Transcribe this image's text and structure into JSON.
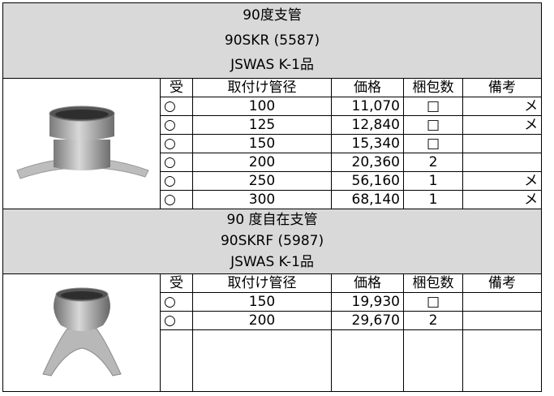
{
  "sections": [
    {
      "title": [
        "90度支管",
        "90SKR (5587)",
        "JSWAS K-1品"
      ],
      "headers": [
        "受",
        "取付け管径",
        "価格",
        "梱包数",
        "備考"
      ],
      "rows": [
        {
          "mark": "○",
          "size": "100",
          "price": "11,070",
          "pack": "□",
          "note": "メ"
        },
        {
          "mark": "○",
          "size": "125",
          "price": "12,840",
          "pack": "□",
          "note": "メ"
        },
        {
          "mark": "○",
          "size": "150",
          "price": "15,340",
          "pack": "□"
        },
        {
          "mark": "○",
          "size": "200",
          "price": "20,360",
          "pack": "2"
        },
        {
          "mark": "○",
          "size": "250",
          "price": "56,160",
          "pack": "1",
          "note": "メ"
        },
        {
          "mark": "○",
          "size": "300",
          "price": "68,140",
          "pack": "1",
          "note": "メ"
        }
      ]
    },
    {
      "title": [
        "90 度自在支管",
        "90SKRF (5987)",
        "JSWAS K-1品"
      ],
      "headers": [
        "受",
        "取付け管径",
        "価格",
        "梱包数",
        "備考"
      ],
      "rows": [
        {
          "mark": "○",
          "size": "150",
          "price": "19,930",
          "pack": "□"
        },
        {
          "mark": "○",
          "size": "200",
          "price": "29,670",
          "pack": "2"
        }
      ]
    }
  ]
}
